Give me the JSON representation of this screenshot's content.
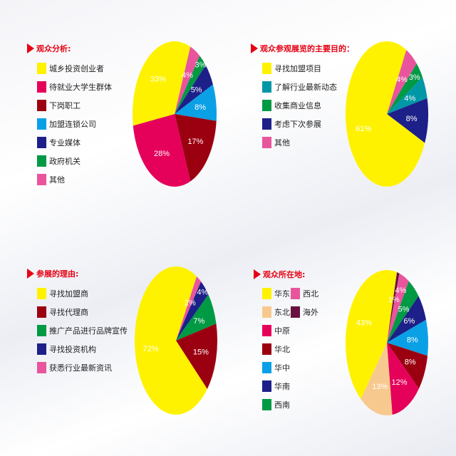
{
  "chart_data": [
    {
      "type": "pie",
      "title": "观众分析:",
      "legend_columns": 1,
      "categories": [
        "城乡投资创业者",
        "待就业大学生群体",
        "下岗职工",
        "加盟连锁公司",
        "专业媒体",
        "政府机关",
        "其他"
      ],
      "values": [
        33,
        28,
        17,
        8,
        5,
        3,
        4
      ],
      "labels": [
        "33%",
        "28%",
        "17%",
        "8%",
        "5%",
        "3%",
        "4%"
      ],
      "colors": [
        "#fff200",
        "#e5005a",
        "#9b0010",
        "#0aa0e6",
        "#1d2088",
        "#009944",
        "#e8559c"
      ],
      "slice_order": [
        6,
        5,
        4,
        3,
        2,
        1,
        0
      ]
    },
    {
      "type": "pie",
      "title": "观众参观展览的主要目的：",
      "legend_columns": 1,
      "categories": [
        "寻找加盟项目",
        "了解行业最新动态",
        "收集商业信息",
        "考虑下次参展",
        "其他"
      ],
      "values": [
        61,
        4,
        3,
        8,
        4
      ],
      "labels": [
        "61%",
        "4%",
        "3%",
        "8%",
        "4%"
      ],
      "colors": [
        "#fff200",
        "#0097a7",
        "#009944",
        "#1d2088",
        "#e8559c"
      ],
      "slice_order": [
        4,
        2,
        1,
        3,
        0
      ]
    },
    {
      "type": "pie",
      "title": "参展的理由:",
      "legend_columns": 1,
      "categories": [
        "寻找加盟商",
        "寻找代理商",
        "推广产品进行品牌宣传",
        "寻找投资机构",
        "获悉行业最新资讯"
      ],
      "values": [
        72,
        15,
        7,
        4,
        2
      ],
      "labels": [
        "72%",
        "15%",
        "7%",
        "4%",
        "2%"
      ],
      "colors": [
        "#fff200",
        "#9b0010",
        "#009944",
        "#1d2088",
        "#e8559c"
      ],
      "slice_order": [
        4,
        3,
        2,
        1,
        0
      ]
    },
    {
      "type": "pie",
      "title": "观众所在地:",
      "legend_columns": 2,
      "categories": [
        "华东",
        "东北",
        "中原",
        "华北",
        "华中",
        "华南",
        "西南",
        "西北",
        "海外"
      ],
      "values": [
        43,
        13,
        12,
        8,
        8,
        6,
        5,
        4,
        1
      ],
      "labels": [
        "43%",
        "13%",
        "12%",
        "8%",
        "8%",
        "6%",
        "5%",
        "4%",
        "1%"
      ],
      "colors": [
        "#fff200",
        "#f8c98e",
        "#e5005a",
        "#9b0010",
        "#0aa0e6",
        "#1d2088",
        "#009944",
        "#e8559c",
        "#6a1040"
      ],
      "slice_order": [
        8,
        7,
        6,
        5,
        4,
        3,
        2,
        1,
        0
      ]
    }
  ],
  "marker_color": "#e60012"
}
